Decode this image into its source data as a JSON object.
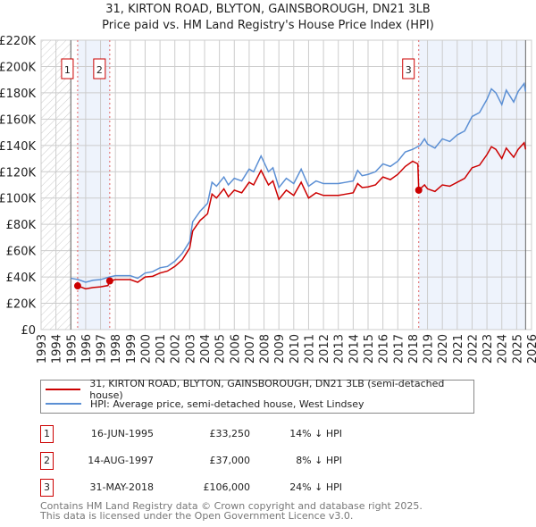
{
  "title": "31, KIRTON ROAD, BLYTON, GAINSBOROUGH, DN21 3LB",
  "subtitle": "Price paid vs. HM Land Registry's House Price Index (HPI)",
  "chart_data": {
    "type": "line",
    "xlim": [
      1993,
      2026
    ],
    "ylim": [
      0,
      220000
    ],
    "y_ticks": [
      0,
      20000,
      40000,
      60000,
      80000,
      100000,
      120000,
      140000,
      160000,
      180000,
      200000,
      220000
    ],
    "y_tick_labels": [
      "£0",
      "£20K",
      "£40K",
      "£60K",
      "£80K",
      "£100K",
      "£120K",
      "£140K",
      "£160K",
      "£180K",
      "£200K",
      "£220K"
    ],
    "x_ticks": [
      "1993",
      "1994",
      "1995",
      "1996",
      "1997",
      "1998",
      "1999",
      "2000",
      "2001",
      "2002",
      "2003",
      "2004",
      "2005",
      "2006",
      "2007",
      "2008",
      "2009",
      "2010",
      "2011",
      "2012",
      "2013",
      "2014",
      "2015",
      "2016",
      "2017",
      "2018",
      "2019",
      "2020",
      "2021",
      "2022",
      "2023",
      "2024",
      "2025",
      "2026"
    ],
    "colors": {
      "price": "#cc0000",
      "hpi": "#5b8fd4",
      "shade": "#eef3fc"
    },
    "series": [
      {
        "name": "31, KIRTON ROAD, BLYTON, GAINSBOROUGH, DN21 3LB (semi-detached house)",
        "key": "price",
        "points": [
          [
            1995.46,
            33250
          ],
          [
            1996,
            31000
          ],
          [
            1996.5,
            32000
          ],
          [
            1997,
            32500
          ],
          [
            1997.5,
            33500
          ],
          [
            1997.62,
            37000
          ],
          [
            1998,
            38000
          ],
          [
            1999,
            38000
          ],
          [
            1999.5,
            36000
          ],
          [
            2000,
            40000
          ],
          [
            2000.5,
            40500
          ],
          [
            2001,
            43000
          ],
          [
            2001.5,
            44500
          ],
          [
            2002,
            48000
          ],
          [
            2002.5,
            53000
          ],
          [
            2003,
            62000
          ],
          [
            2003.2,
            75000
          ],
          [
            2003.7,
            83000
          ],
          [
            2004.2,
            88000
          ],
          [
            2004.5,
            103000
          ],
          [
            2004.8,
            100000
          ],
          [
            2005.3,
            107000
          ],
          [
            2005.6,
            101000
          ],
          [
            2006,
            106000
          ],
          [
            2006.5,
            104000
          ],
          [
            2007,
            112000
          ],
          [
            2007.3,
            110000
          ],
          [
            2007.8,
            121000
          ],
          [
            2008.3,
            110000
          ],
          [
            2008.6,
            113000
          ],
          [
            2009,
            99000
          ],
          [
            2009.5,
            106000
          ],
          [
            2010,
            102000
          ],
          [
            2010.5,
            112000
          ],
          [
            2011,
            100000
          ],
          [
            2011.5,
            104000
          ],
          [
            2012,
            102000
          ],
          [
            2012.5,
            102000
          ],
          [
            2013,
            102000
          ],
          [
            2013.5,
            103000
          ],
          [
            2014,
            104000
          ],
          [
            2014.3,
            111000
          ],
          [
            2014.6,
            108000
          ],
          [
            2015,
            108500
          ],
          [
            2015.5,
            110000
          ],
          [
            2016,
            116000
          ],
          [
            2016.5,
            114000
          ],
          [
            2017,
            118000
          ],
          [
            2017.5,
            124000
          ],
          [
            2018,
            128000
          ],
          [
            2018.35,
            126000
          ],
          [
            2018.41,
            106000
          ],
          [
            2018.8,
            110000
          ],
          [
            2019,
            107000
          ],
          [
            2019.5,
            105000
          ],
          [
            2020,
            110000
          ],
          [
            2020.5,
            109000
          ],
          [
            2021,
            112000
          ],
          [
            2021.5,
            115000
          ],
          [
            2022,
            123000
          ],
          [
            2022.5,
            125000
          ],
          [
            2023,
            133000
          ],
          [
            2023.3,
            139000
          ],
          [
            2023.6,
            137000
          ],
          [
            2024,
            130000
          ],
          [
            2024.3,
            138000
          ],
          [
            2024.8,
            131000
          ],
          [
            2025.1,
            137000
          ],
          [
            2025.5,
            142000
          ],
          [
            2025.6,
            137000
          ]
        ]
      },
      {
        "name": "HPI: Average price, semi-detached house, West Lindsey",
        "key": "hpi",
        "points": [
          [
            1995,
            39000
          ],
          [
            1995.5,
            38000
          ],
          [
            1996,
            36000
          ],
          [
            1996.5,
            37500
          ],
          [
            1997,
            38000
          ],
          [
            1997.6,
            40000
          ],
          [
            1998,
            41000
          ],
          [
            1999,
            41000
          ],
          [
            1999.5,
            39000
          ],
          [
            2000,
            43000
          ],
          [
            2000.5,
            44000
          ],
          [
            2001,
            47000
          ],
          [
            2001.5,
            48000
          ],
          [
            2002,
            52000
          ],
          [
            2002.5,
            58000
          ],
          [
            2003,
            67000
          ],
          [
            2003.2,
            82000
          ],
          [
            2003.7,
            90000
          ],
          [
            2004.2,
            96000
          ],
          [
            2004.5,
            112000
          ],
          [
            2004.8,
            109000
          ],
          [
            2005.3,
            116000
          ],
          [
            2005.6,
            110000
          ],
          [
            2006,
            115000
          ],
          [
            2006.5,
            113000
          ],
          [
            2007,
            122000
          ],
          [
            2007.3,
            120000
          ],
          [
            2007.8,
            132000
          ],
          [
            2008.3,
            120000
          ],
          [
            2008.6,
            123000
          ],
          [
            2009,
            108000
          ],
          [
            2009.5,
            115000
          ],
          [
            2010,
            111000
          ],
          [
            2010.5,
            122000
          ],
          [
            2011,
            109000
          ],
          [
            2011.5,
            113000
          ],
          [
            2012,
            111000
          ],
          [
            2012.5,
            111000
          ],
          [
            2013,
            111000
          ],
          [
            2013.5,
            112000
          ],
          [
            2014,
            113000
          ],
          [
            2014.3,
            121000
          ],
          [
            2014.6,
            117000
          ],
          [
            2015,
            118000
          ],
          [
            2015.5,
            120000
          ],
          [
            2016,
            126000
          ],
          [
            2016.5,
            124000
          ],
          [
            2017,
            128000
          ],
          [
            2017.5,
            135000
          ],
          [
            2018,
            137000
          ],
          [
            2018.5,
            140000
          ],
          [
            2018.8,
            145000
          ],
          [
            2019,
            141000
          ],
          [
            2019.5,
            138000
          ],
          [
            2020,
            145000
          ],
          [
            2020.5,
            143000
          ],
          [
            2021,
            148000
          ],
          [
            2021.5,
            151000
          ],
          [
            2022,
            162000
          ],
          [
            2022.5,
            165000
          ],
          [
            2023,
            175000
          ],
          [
            2023.3,
            183000
          ],
          [
            2023.6,
            180000
          ],
          [
            2024,
            171000
          ],
          [
            2024.3,
            182000
          ],
          [
            2024.8,
            173000
          ],
          [
            2025.1,
            181000
          ],
          [
            2025.5,
            187000
          ],
          [
            2025.6,
            181000
          ]
        ]
      }
    ],
    "sales": [
      {
        "label": "1",
        "x": 1995.46,
        "y": 33250
      },
      {
        "label": "2",
        "x": 1997.62,
        "y": 37000
      },
      {
        "label": "3",
        "x": 2018.41,
        "y": 106000
      }
    ],
    "data_end": 2025.6
  },
  "transactions": [
    {
      "num": "1",
      "date": "16-JUN-1995",
      "price": "£33,250",
      "hpi": "14% ↓ HPI"
    },
    {
      "num": "2",
      "date": "14-AUG-1997",
      "price": "£37,000",
      "hpi": "8% ↓ HPI"
    },
    {
      "num": "3",
      "date": "31-MAY-2018",
      "price": "£106,000",
      "hpi": "24% ↓ HPI"
    }
  ],
  "footer": [
    "Contains HM Land Registry data © Crown copyright and database right 2025.",
    "This data is licensed under the Open Government Licence v3.0."
  ]
}
